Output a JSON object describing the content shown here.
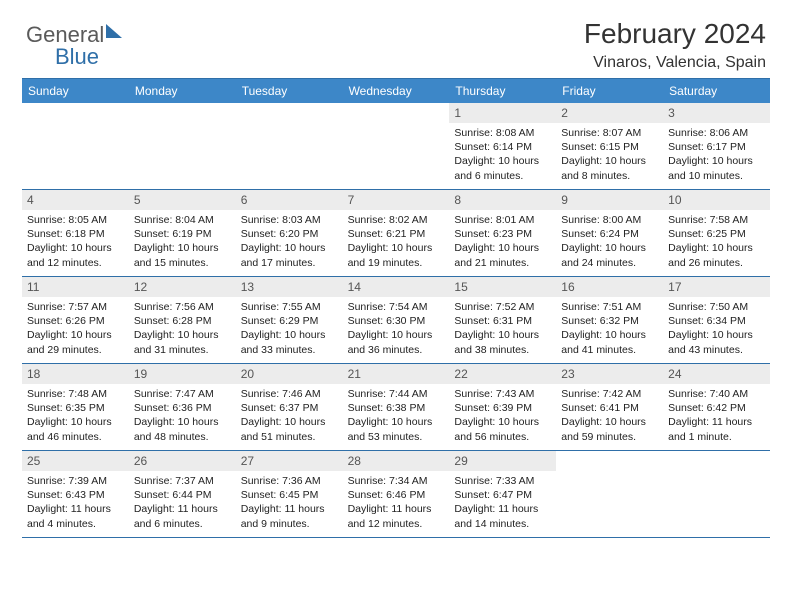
{
  "logo": {
    "part1": "General",
    "part2": "Blue"
  },
  "header": {
    "title": "February 2024",
    "location": "Vinaros, Valencia, Spain"
  },
  "colors": {
    "header_bg": "#3d87c8",
    "border": "#2f6fa8",
    "daynum_bg": "#ececec",
    "text": "#222222"
  },
  "weekdays": [
    "Sunday",
    "Monday",
    "Tuesday",
    "Wednesday",
    "Thursday",
    "Friday",
    "Saturday"
  ],
  "weeks": [
    [
      null,
      null,
      null,
      null,
      {
        "n": "1",
        "sr": "8:08 AM",
        "ss": "6:14 PM",
        "dl": "10 hours and 6 minutes."
      },
      {
        "n": "2",
        "sr": "8:07 AM",
        "ss": "6:15 PM",
        "dl": "10 hours and 8 minutes."
      },
      {
        "n": "3",
        "sr": "8:06 AM",
        "ss": "6:17 PM",
        "dl": "10 hours and 10 minutes."
      }
    ],
    [
      {
        "n": "4",
        "sr": "8:05 AM",
        "ss": "6:18 PM",
        "dl": "10 hours and 12 minutes."
      },
      {
        "n": "5",
        "sr": "8:04 AM",
        "ss": "6:19 PM",
        "dl": "10 hours and 15 minutes."
      },
      {
        "n": "6",
        "sr": "8:03 AM",
        "ss": "6:20 PM",
        "dl": "10 hours and 17 minutes."
      },
      {
        "n": "7",
        "sr": "8:02 AM",
        "ss": "6:21 PM",
        "dl": "10 hours and 19 minutes."
      },
      {
        "n": "8",
        "sr": "8:01 AM",
        "ss": "6:23 PM",
        "dl": "10 hours and 21 minutes."
      },
      {
        "n": "9",
        "sr": "8:00 AM",
        "ss": "6:24 PM",
        "dl": "10 hours and 24 minutes."
      },
      {
        "n": "10",
        "sr": "7:58 AM",
        "ss": "6:25 PM",
        "dl": "10 hours and 26 minutes."
      }
    ],
    [
      {
        "n": "11",
        "sr": "7:57 AM",
        "ss": "6:26 PM",
        "dl": "10 hours and 29 minutes."
      },
      {
        "n": "12",
        "sr": "7:56 AM",
        "ss": "6:28 PM",
        "dl": "10 hours and 31 minutes."
      },
      {
        "n": "13",
        "sr": "7:55 AM",
        "ss": "6:29 PM",
        "dl": "10 hours and 33 minutes."
      },
      {
        "n": "14",
        "sr": "7:54 AM",
        "ss": "6:30 PM",
        "dl": "10 hours and 36 minutes."
      },
      {
        "n": "15",
        "sr": "7:52 AM",
        "ss": "6:31 PM",
        "dl": "10 hours and 38 minutes."
      },
      {
        "n": "16",
        "sr": "7:51 AM",
        "ss": "6:32 PM",
        "dl": "10 hours and 41 minutes."
      },
      {
        "n": "17",
        "sr": "7:50 AM",
        "ss": "6:34 PM",
        "dl": "10 hours and 43 minutes."
      }
    ],
    [
      {
        "n": "18",
        "sr": "7:48 AM",
        "ss": "6:35 PM",
        "dl": "10 hours and 46 minutes."
      },
      {
        "n": "19",
        "sr": "7:47 AM",
        "ss": "6:36 PM",
        "dl": "10 hours and 48 minutes."
      },
      {
        "n": "20",
        "sr": "7:46 AM",
        "ss": "6:37 PM",
        "dl": "10 hours and 51 minutes."
      },
      {
        "n": "21",
        "sr": "7:44 AM",
        "ss": "6:38 PM",
        "dl": "10 hours and 53 minutes."
      },
      {
        "n": "22",
        "sr": "7:43 AM",
        "ss": "6:39 PM",
        "dl": "10 hours and 56 minutes."
      },
      {
        "n": "23",
        "sr": "7:42 AM",
        "ss": "6:41 PM",
        "dl": "10 hours and 59 minutes."
      },
      {
        "n": "24",
        "sr": "7:40 AM",
        "ss": "6:42 PM",
        "dl": "11 hours and 1 minute."
      }
    ],
    [
      {
        "n": "25",
        "sr": "7:39 AM",
        "ss": "6:43 PM",
        "dl": "11 hours and 4 minutes."
      },
      {
        "n": "26",
        "sr": "7:37 AM",
        "ss": "6:44 PM",
        "dl": "11 hours and 6 minutes."
      },
      {
        "n": "27",
        "sr": "7:36 AM",
        "ss": "6:45 PM",
        "dl": "11 hours and 9 minutes."
      },
      {
        "n": "28",
        "sr": "7:34 AM",
        "ss": "6:46 PM",
        "dl": "11 hours and 12 minutes."
      },
      {
        "n": "29",
        "sr": "7:33 AM",
        "ss": "6:47 PM",
        "dl": "11 hours and 14 minutes."
      },
      null,
      null
    ]
  ],
  "labels": {
    "sunrise": "Sunrise: ",
    "sunset": "Sunset: ",
    "daylight": "Daylight: "
  }
}
